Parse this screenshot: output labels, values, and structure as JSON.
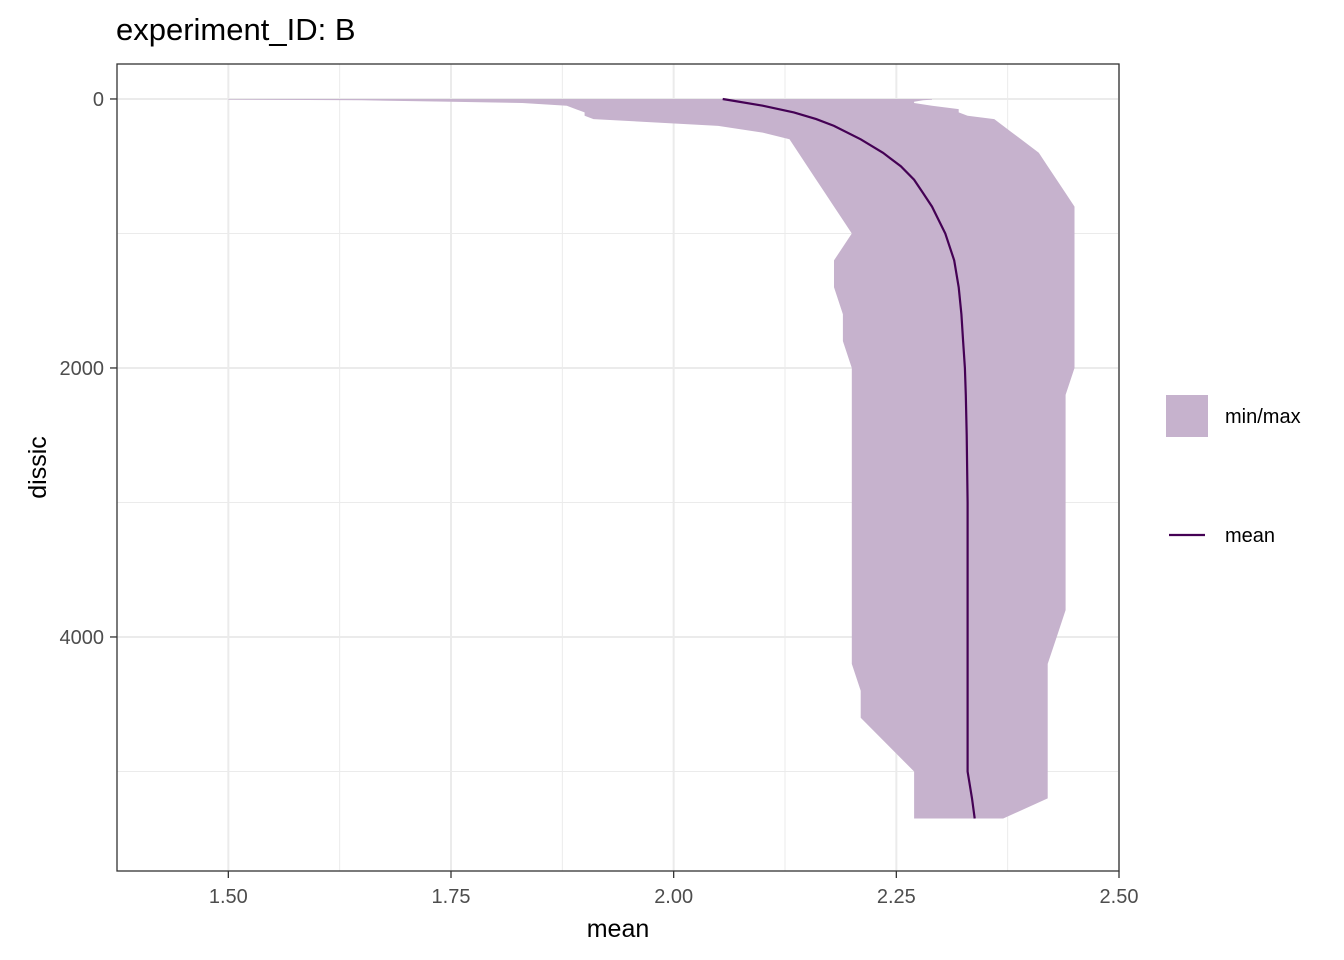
{
  "chart_data": {
    "type": "area",
    "title": "experiment_ID: B",
    "xlabel": "mean",
    "ylabel": "dissic",
    "xlim": [
      1.375,
      2.5
    ],
    "ylim": [
      5740,
      -260
    ],
    "y_reversed": true,
    "x_ticks": [
      1.5,
      1.75,
      2.0,
      2.25,
      2.5
    ],
    "x_tick_labels": [
      "1.50",
      "1.75",
      "2.00",
      "2.25",
      "2.50"
    ],
    "y_ticks": [
      0,
      2000,
      4000
    ],
    "y_tick_labels": [
      "0",
      "2000",
      "4000"
    ],
    "grid": true,
    "legend_position": "right",
    "ribbon": {
      "name": "min/max",
      "color": "#c6b2cd",
      "depth": [
        0,
        5,
        10,
        20,
        30,
        50,
        75,
        100,
        125,
        150,
        200,
        250,
        300,
        400,
        500,
        600,
        700,
        800,
        900,
        1000,
        1200,
        1400,
        1600,
        1800,
        2000,
        2200,
        2400,
        2600,
        2800,
        3000,
        3200,
        3400,
        3600,
        3800,
        4000,
        4200,
        4400,
        4600,
        4800,
        5000,
        5200,
        5350
      ],
      "min": [
        1.5,
        1.5,
        1.65,
        1.75,
        1.83,
        1.88,
        1.89,
        1.9,
        1.9,
        1.91,
        2.05,
        2.1,
        2.13,
        2.14,
        2.15,
        2.16,
        2.17,
        2.18,
        2.19,
        2.2,
        2.18,
        2.18,
        2.19,
        2.19,
        2.2,
        2.2,
        2.2,
        2.2,
        2.2,
        2.2,
        2.2,
        2.2,
        2.2,
        2.2,
        2.2,
        2.2,
        2.21,
        2.21,
        2.24,
        2.27,
        2.27,
        2.27
      ],
      "max": [
        2.29,
        2.29,
        2.28,
        2.27,
        2.27,
        2.29,
        2.32,
        2.32,
        2.33,
        2.36,
        2.37,
        2.38,
        2.39,
        2.41,
        2.42,
        2.43,
        2.44,
        2.45,
        2.45,
        2.45,
        2.45,
        2.45,
        2.45,
        2.45,
        2.45,
        2.44,
        2.44,
        2.44,
        2.44,
        2.44,
        2.44,
        2.44,
        2.44,
        2.44,
        2.43,
        2.42,
        2.42,
        2.42,
        2.42,
        2.42,
        2.42,
        2.37
      ]
    },
    "series": [
      {
        "name": "mean",
        "color": "#440154",
        "depth": [
          0,
          50,
          100,
          150,
          200,
          300,
          400,
          500,
          600,
          700,
          800,
          1000,
          1200,
          1400,
          1600,
          1800,
          2000,
          2200,
          2500,
          3000,
          3500,
          4000,
          4500,
          5000,
          5200,
          5350
        ],
        "values": [
          2.055,
          2.1,
          2.135,
          2.16,
          2.18,
          2.21,
          2.235,
          2.255,
          2.27,
          2.28,
          2.29,
          2.305,
          2.315,
          2.32,
          2.323,
          2.325,
          2.327,
          2.328,
          2.329,
          2.33,
          2.33,
          2.33,
          2.33,
          2.33,
          2.335,
          2.338
        ]
      }
    ],
    "legend": [
      {
        "label": "min/max",
        "kind": "fill",
        "color": "#c6b2cd"
      },
      {
        "label": "mean",
        "kind": "line",
        "color": "#440154"
      }
    ]
  }
}
